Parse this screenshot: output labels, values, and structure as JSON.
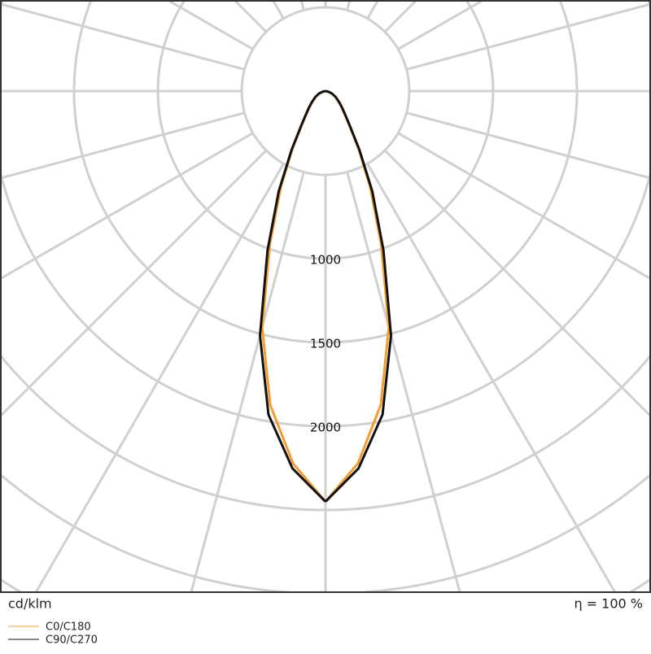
{
  "chart_data": {
    "type": "polar",
    "unit_label": "cd/klm",
    "efficiency_label": "η = 100 %",
    "angles": [
      0,
      5,
      10,
      15,
      20,
      25,
      30,
      35,
      40,
      45,
      50,
      60,
      70,
      80,
      90
    ],
    "series": [
      {
        "name": "C0/C180",
        "color": "#f39c34",
        "values": [
          2450,
          2230,
          1900,
          1460,
          970,
          630,
          390,
          245,
          175,
          135,
          105,
          68,
          38,
          14,
          0
        ]
      },
      {
        "name": "C90/C270",
        "color": "#111111",
        "values": [
          2450,
          2260,
          1960,
          1510,
          1010,
          660,
          405,
          255,
          182,
          140,
          110,
          70,
          40,
          15,
          0
        ]
      }
    ],
    "rlim": [
      0,
      2500
    ],
    "rticks": [
      1000,
      1500,
      2000
    ],
    "rgrid": [
      500,
      1000,
      1500,
      2000,
      2500,
      3000,
      3500
    ],
    "angle_grid_step": 15,
    "grid": true
  }
}
